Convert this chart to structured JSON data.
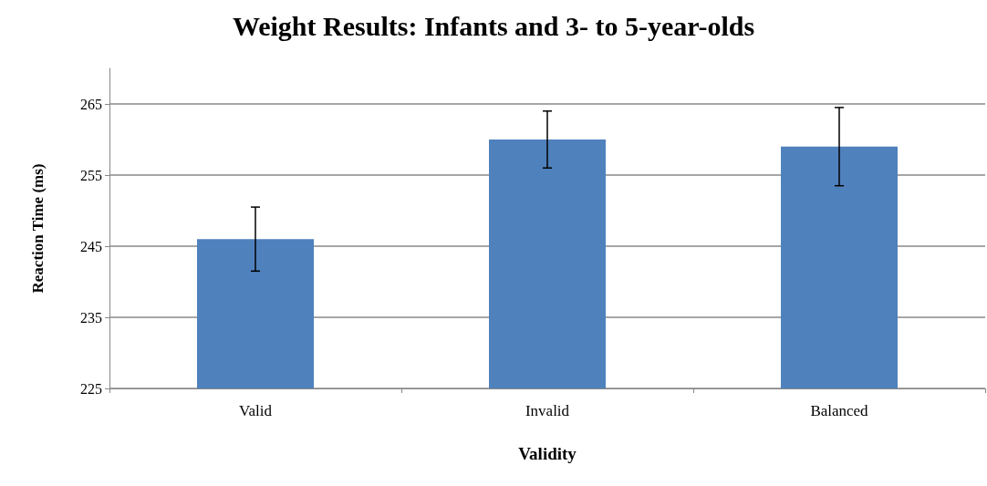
{
  "chart_data": {
    "type": "bar",
    "title": "Weight Results: Infants and 3- to 5-year-olds",
    "xlabel": "Validity",
    "ylabel": "Reaction Time (ms)",
    "categories": [
      "Valid",
      "Invalid",
      "Balanced"
    ],
    "values": [
      246,
      260,
      259
    ],
    "errors": [
      4.5,
      4,
      5.5
    ],
    "color": "#4f81bd",
    "ylim": [
      225,
      270
    ],
    "yticks": [
      225,
      235,
      245,
      255,
      265
    ],
    "grid": "y"
  }
}
